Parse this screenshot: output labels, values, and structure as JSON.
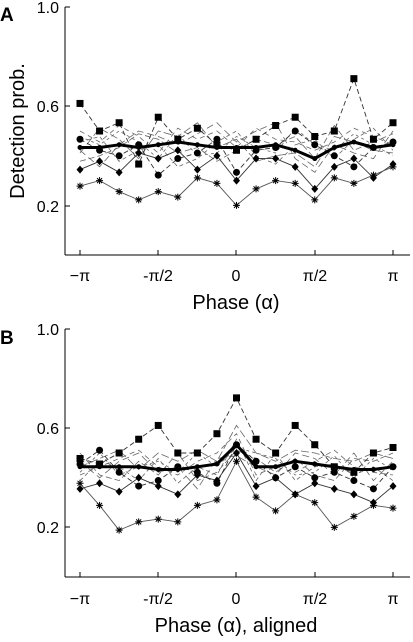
{
  "figure": {
    "x_tick_labels": [
      "−π",
      "-π/2",
      "0",
      "π/2",
      "π"
    ],
    "y_tick_labels": [
      "0.2",
      "0.6",
      "1.0"
    ]
  },
  "chart_data": [
    {
      "type": "line",
      "panel": "A",
      "title": "",
      "xlabel": "Phase (α)",
      "ylabel": "Detection prob.",
      "x_ticks": [
        -3.1416,
        -1.5708,
        0,
        1.5708,
        3.1416
      ],
      "x_tick_labels": [
        "−π",
        "-π/2",
        "0",
        "π/2",
        "π"
      ],
      "y_ticks": [
        0.2,
        0.6,
        1.0
      ],
      "ylim": [
        0.1,
        1.0
      ],
      "xlim": [
        -3.3,
        3.3
      ],
      "grid": false,
      "x": [
        -3.1416,
        -2.7489,
        -2.3562,
        -1.9635,
        -1.5708,
        -1.1781,
        -0.7854,
        -0.3927,
        0,
        0.3927,
        0.7854,
        1.1781,
        1.5708,
        1.9635,
        2.3562,
        2.7489,
        3.1416
      ],
      "mean": [
        0.49,
        0.49,
        0.5,
        0.49,
        0.5,
        0.51,
        0.5,
        0.49,
        0.49,
        0.49,
        0.5,
        0.48,
        0.45,
        0.49,
        0.51,
        0.49,
        0.5
      ],
      "series": [
        {
          "marker": "square",
          "values": [
            0.65,
            0.55,
            0.58,
            0.43,
            0.6,
            0.52,
            0.56,
            0.5,
            0.48,
            0.52,
            0.57,
            0.6,
            0.53,
            0.55,
            0.74,
            0.52,
            0.58
          ]
        },
        {
          "marker": "circle",
          "values": [
            0.52,
            0.48,
            0.46,
            0.5,
            0.39,
            0.45,
            0.47,
            0.52,
            0.4,
            0.48,
            0.49,
            0.55,
            0.5,
            0.46,
            0.42,
            0.49,
            0.51
          ]
        },
        {
          "marker": "diamond",
          "values": [
            0.41,
            0.44,
            0.4,
            0.47,
            0.45,
            0.48,
            0.41,
            0.46,
            0.37,
            0.45,
            0.45,
            0.42,
            0.34,
            0.42,
            0.45,
            0.38,
            0.43
          ]
        },
        {
          "marker": "star",
          "values": [
            0.35,
            0.37,
            0.33,
            0.3,
            0.33,
            0.31,
            0.38,
            0.36,
            0.28,
            0.34,
            0.37,
            0.36,
            0.3,
            0.38,
            0.36,
            0.39,
            0.42
          ]
        },
        {
          "marker": "none",
          "values": [
            0.47,
            0.56,
            0.52,
            0.45,
            0.55,
            0.53,
            0.58,
            0.49,
            0.52,
            0.44,
            0.46,
            0.47,
            0.42,
            0.53,
            0.51,
            0.48,
            0.47
          ]
        },
        {
          "marker": "none",
          "values": [
            0.55,
            0.51,
            0.57,
            0.53,
            0.47,
            0.56,
            0.52,
            0.55,
            0.49,
            0.56,
            0.52,
            0.51,
            0.48,
            0.51,
            0.56,
            0.53,
            0.5
          ]
        },
        {
          "marker": "none",
          "values": [
            0.44,
            0.46,
            0.49,
            0.54,
            0.52,
            0.47,
            0.49,
            0.44,
            0.48,
            0.52,
            0.5,
            0.53,
            0.45,
            0.57,
            0.48,
            0.51,
            0.54
          ]
        },
        {
          "marker": "none",
          "values": [
            0.51,
            0.53,
            0.44,
            0.48,
            0.5,
            0.42,
            0.45,
            0.51,
            0.55,
            0.46,
            0.43,
            0.5,
            0.52,
            0.45,
            0.52,
            0.56,
            0.48
          ]
        },
        {
          "marker": "none",
          "values": [
            0.48,
            0.42,
            0.5,
            0.55,
            0.53,
            0.5,
            0.54,
            0.58,
            0.51,
            0.55,
            0.58,
            0.45,
            0.4,
            0.5,
            0.47,
            0.45,
            0.55
          ]
        },
        {
          "marker": "none",
          "values": [
            0.53,
            0.5,
            0.55,
            0.51,
            0.45,
            0.54,
            0.46,
            0.47,
            0.53,
            0.49,
            0.47,
            0.56,
            0.5,
            0.48,
            0.54,
            0.5,
            0.46
          ]
        }
      ]
    },
    {
      "type": "line",
      "panel": "B",
      "title": "",
      "xlabel": "Phase (α), aligned",
      "ylabel": "",
      "x_ticks": [
        -3.1416,
        -1.5708,
        0,
        1.5708,
        3.1416
      ],
      "x_tick_labels": [
        "−π",
        "-π/2",
        "0",
        "π/2",
        "π"
      ],
      "y_ticks": [
        0.2,
        0.6,
        1.0
      ],
      "ylim": [
        0.1,
        1.0
      ],
      "xlim": [
        -3.3,
        3.3
      ],
      "grid": false,
      "x": [
        -3.1416,
        -2.7489,
        -2.3562,
        -1.9635,
        -1.5708,
        -1.1781,
        -0.7854,
        -0.3927,
        0,
        0.3927,
        0.7854,
        1.1781,
        1.5708,
        1.9635,
        2.3562,
        2.7489,
        3.1416
      ],
      "mean": [
        0.5,
        0.5,
        0.5,
        0.5,
        0.49,
        0.49,
        0.5,
        0.51,
        0.58,
        0.5,
        0.5,
        0.52,
        0.51,
        0.5,
        0.49,
        0.49,
        0.5
      ],
      "series": [
        {
          "marker": "square",
          "values": [
            0.53,
            0.51,
            0.55,
            0.6,
            0.65,
            0.55,
            0.55,
            0.62,
            0.75,
            0.6,
            0.55,
            0.65,
            0.58,
            0.5,
            0.48,
            0.55,
            0.57
          ]
        },
        {
          "marker": "circle",
          "values": [
            0.51,
            0.56,
            0.48,
            0.43,
            0.45,
            0.5,
            0.48,
            0.44,
            0.58,
            0.52,
            0.46,
            0.5,
            0.46,
            0.48,
            0.45,
            0.42,
            0.5
          ]
        },
        {
          "marker": "diamond",
          "values": [
            0.42,
            0.44,
            0.41,
            0.46,
            0.43,
            0.4,
            0.47,
            0.45,
            0.55,
            0.43,
            0.46,
            0.4,
            0.44,
            0.42,
            0.4,
            0.37,
            0.43
          ]
        },
        {
          "marker": "star",
          "values": [
            0.44,
            0.36,
            0.27,
            0.3,
            0.31,
            0.3,
            0.36,
            0.38,
            0.52,
            0.39,
            0.34,
            0.4,
            0.37,
            0.28,
            0.32,
            0.36,
            0.35
          ]
        },
        {
          "marker": "none",
          "values": [
            0.5,
            0.53,
            0.56,
            0.49,
            0.55,
            0.52,
            0.56,
            0.52,
            0.65,
            0.55,
            0.52,
            0.56,
            0.55,
            0.53,
            0.52,
            0.55,
            0.53
          ]
        },
        {
          "marker": "none",
          "values": [
            0.47,
            0.5,
            0.53,
            0.56,
            0.5,
            0.47,
            0.52,
            0.55,
            0.62,
            0.47,
            0.5,
            0.48,
            0.52,
            0.56,
            0.5,
            0.48,
            0.47
          ]
        },
        {
          "marker": "none",
          "values": [
            0.55,
            0.47,
            0.45,
            0.52,
            0.47,
            0.55,
            0.45,
            0.48,
            0.56,
            0.53,
            0.48,
            0.53,
            0.47,
            0.45,
            0.53,
            0.52,
            0.55
          ]
        },
        {
          "marker": "none",
          "values": [
            0.45,
            0.52,
            0.5,
            0.45,
            0.53,
            0.44,
            0.5,
            0.47,
            0.6,
            0.45,
            0.55,
            0.45,
            0.5,
            0.51,
            0.47,
            0.5,
            0.45
          ]
        },
        {
          "marker": "none",
          "values": [
            0.52,
            0.46,
            0.52,
            0.55,
            0.48,
            0.5,
            0.42,
            0.53,
            0.54,
            0.5,
            0.47,
            0.55,
            0.53,
            0.47,
            0.55,
            0.45,
            0.52
          ]
        },
        {
          "marker": "none",
          "values": [
            0.48,
            0.55,
            0.47,
            0.5,
            0.52,
            0.48,
            0.55,
            0.5,
            0.57,
            0.55,
            0.53,
            0.47,
            0.48,
            0.54,
            0.46,
            0.53,
            0.49
          ]
        }
      ]
    }
  ]
}
